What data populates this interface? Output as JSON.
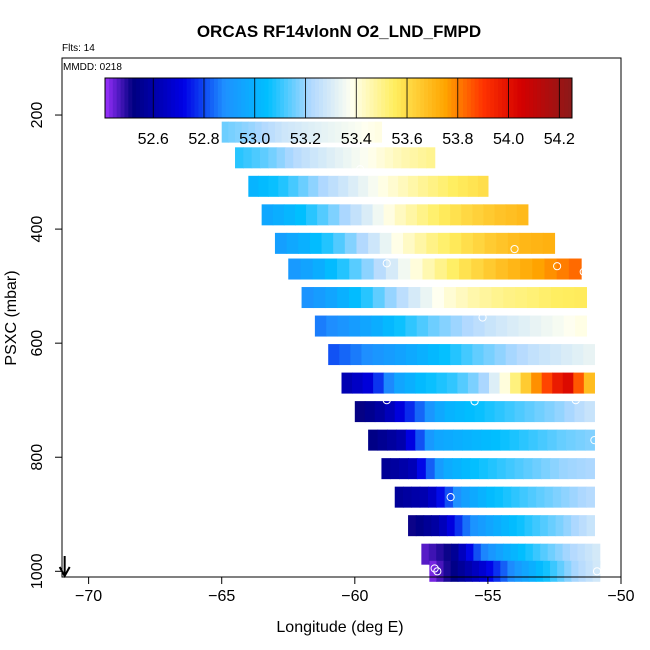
{
  "chart_data": {
    "type": "heatmap",
    "title": "ORCAS RF14vlonN O2_LND_FMPD",
    "flights_label": "Flts: 14",
    "date_label": "MMDD: 0218",
    "xlabel": "Longitude (deg E)",
    "ylabel": "PSXC (mbar)",
    "xlim": [
      -71,
      -50
    ],
    "ylim": [
      1010,
      100
    ],
    "x_ticks": [
      -70,
      -65,
      -60,
      -55,
      -50
    ],
    "y_ticks": [
      200,
      400,
      600,
      800,
      1000
    ],
    "colorbar": {
      "min": 52.41,
      "max": 54.25,
      "ticks": [
        52.6,
        52.8,
        53.0,
        53.2,
        53.4,
        53.6,
        53.8,
        54.0,
        54.2
      ],
      "stops": [
        [
          52.41,
          "#9b30ff"
        ],
        [
          52.52,
          "#000080"
        ],
        [
          52.72,
          "#0000e6"
        ],
        [
          52.88,
          "#1e90ff"
        ],
        [
          53.05,
          "#00bfff"
        ],
        [
          53.22,
          "#b0d8ff"
        ],
        [
          53.38,
          "#fffff0"
        ],
        [
          53.55,
          "#ffee60"
        ],
        [
          53.75,
          "#ffa500"
        ],
        [
          53.9,
          "#ff3300"
        ],
        [
          54.05,
          "#d40000"
        ],
        [
          54.25,
          "#8b1a1a"
        ]
      ]
    },
    "rows": [
      {
        "p": 180,
        "x0": -65.8,
        "x1": -60.8,
        "values": [
          53.22,
          53.25,
          53.27,
          53.29,
          53.3
        ]
      },
      {
        "p": 230,
        "x0": -65.0,
        "x1": -59.0,
        "values": [
          53.15,
          53.2,
          53.28,
          53.32,
          53.36,
          53.4
        ]
      },
      {
        "p": 275,
        "x0": -64.5,
        "x1": -57.0,
        "values": [
          53.08,
          53.15,
          53.25,
          53.32,
          53.38,
          53.45,
          53.5
        ]
      },
      {
        "p": 325,
        "x0": -64.0,
        "x1": -55.0,
        "values": [
          53.0,
          53.08,
          53.2,
          53.3,
          53.4,
          53.48,
          53.55,
          53.6
        ]
      },
      {
        "p": 375,
        "x0": -63.5,
        "x1": -53.5,
        "values": [
          52.95,
          53.03,
          53.15,
          53.28,
          53.42,
          53.52,
          53.6,
          53.66,
          53.7
        ]
      },
      {
        "p": 425,
        "x0": -63.0,
        "x1": -52.5,
        "values": [
          52.92,
          53.0,
          53.12,
          53.25,
          53.4,
          53.5,
          53.58,
          53.65,
          53.7,
          53.72
        ]
      },
      {
        "p": 470,
        "x0": -62.5,
        "x1": -51.5,
        "values": [
          52.9,
          52.98,
          53.1,
          53.22,
          53.36,
          53.48,
          53.58,
          53.66,
          53.72,
          53.78,
          53.84
        ]
      },
      {
        "p": 520,
        "x0": -62.0,
        "x1": -51.3,
        "values": [
          52.88,
          52.95,
          53.05,
          53.18,
          53.3,
          53.4,
          53.46,
          53.5,
          53.52,
          53.55,
          53.56
        ]
      },
      {
        "p": 570,
        "x0": -61.5,
        "x1": -51.3,
        "values": [
          52.85,
          52.9,
          52.98,
          53.08,
          53.16,
          53.22,
          53.28,
          53.32,
          53.36,
          53.4
        ]
      },
      {
        "p": 620,
        "x0": -61.0,
        "x1": -51.0,
        "values": [
          52.8,
          52.86,
          52.92,
          52.98,
          53.06,
          53.14,
          53.2,
          53.26,
          53.3,
          53.34
        ]
      },
      {
        "p": 670,
        "x0": -60.5,
        "x1": -51.0,
        "values": [
          52.6,
          52.7,
          52.95,
          53.05,
          53.1,
          53.2,
          53.45,
          53.8,
          54.05,
          53.6
        ]
      },
      {
        "p": 720,
        "x0": -60.0,
        "x1": -51.0,
        "values": [
          52.5,
          52.6,
          52.8,
          53.0,
          53.05,
          53.1,
          53.15,
          53.2,
          53.28
        ]
      },
      {
        "p": 770,
        "x0": -59.5,
        "x1": -51.0,
        "values": [
          52.52,
          52.6,
          52.95,
          53.0,
          53.05,
          53.1,
          53.15,
          53.18
        ]
      },
      {
        "p": 820,
        "x0": -59.0,
        "x1": -51.0,
        "values": [
          52.55,
          52.62,
          52.96,
          53.05,
          53.1,
          53.15,
          53.2,
          53.22
        ]
      },
      {
        "p": 870,
        "x0": -58.5,
        "x1": -51.0,
        "values": [
          52.56,
          52.62,
          52.92,
          53.05,
          53.12,
          53.18,
          53.24
        ]
      },
      {
        "p": 920,
        "x0": -58.0,
        "x1": -51.0,
        "values": [
          52.5,
          52.6,
          52.88,
          53.0,
          53.1,
          53.18,
          53.28
        ]
      },
      {
        "p": 970,
        "x0": -57.5,
        "x1": -50.8,
        "values": [
          52.45,
          52.52,
          52.85,
          53.0,
          53.12,
          53.22,
          53.3
        ]
      },
      {
        "p": 1000,
        "x0": -57.2,
        "x1": -50.8,
        "values": [
          52.42,
          52.55,
          52.7,
          52.9,
          53.05,
          53.2,
          53.3
        ]
      }
    ],
    "points": [
      {
        "x": -65.8,
        "p": 180
      },
      {
        "x": -64.6,
        "p": 180
      },
      {
        "x": -63.4,
        "p": 180
      },
      {
        "x": -62.1,
        "p": 180
      },
      {
        "x": -61.0,
        "p": 195
      },
      {
        "x": -59.8,
        "p": 295
      },
      {
        "x": -53.0,
        "p": 375
      },
      {
        "x": -54.0,
        "p": 435
      },
      {
        "x": -58.8,
        "p": 460
      },
      {
        "x": -52.4,
        "p": 465
      },
      {
        "x": -51.4,
        "p": 475
      },
      {
        "x": -55.2,
        "p": 555
      },
      {
        "x": -58.8,
        "p": 700
      },
      {
        "x": -55.5,
        "p": 702
      },
      {
        "x": -51.7,
        "p": 700
      },
      {
        "x": -51.0,
        "p": 770
      },
      {
        "x": -56.4,
        "p": 870
      },
      {
        "x": -57.0,
        "p": 995
      },
      {
        "x": -56.9,
        "p": 1000
      },
      {
        "x": -57.4,
        "p": 1002
      },
      {
        "x": -50.9,
        "p": 1000
      }
    ],
    "arrow_x": -70.9
  }
}
